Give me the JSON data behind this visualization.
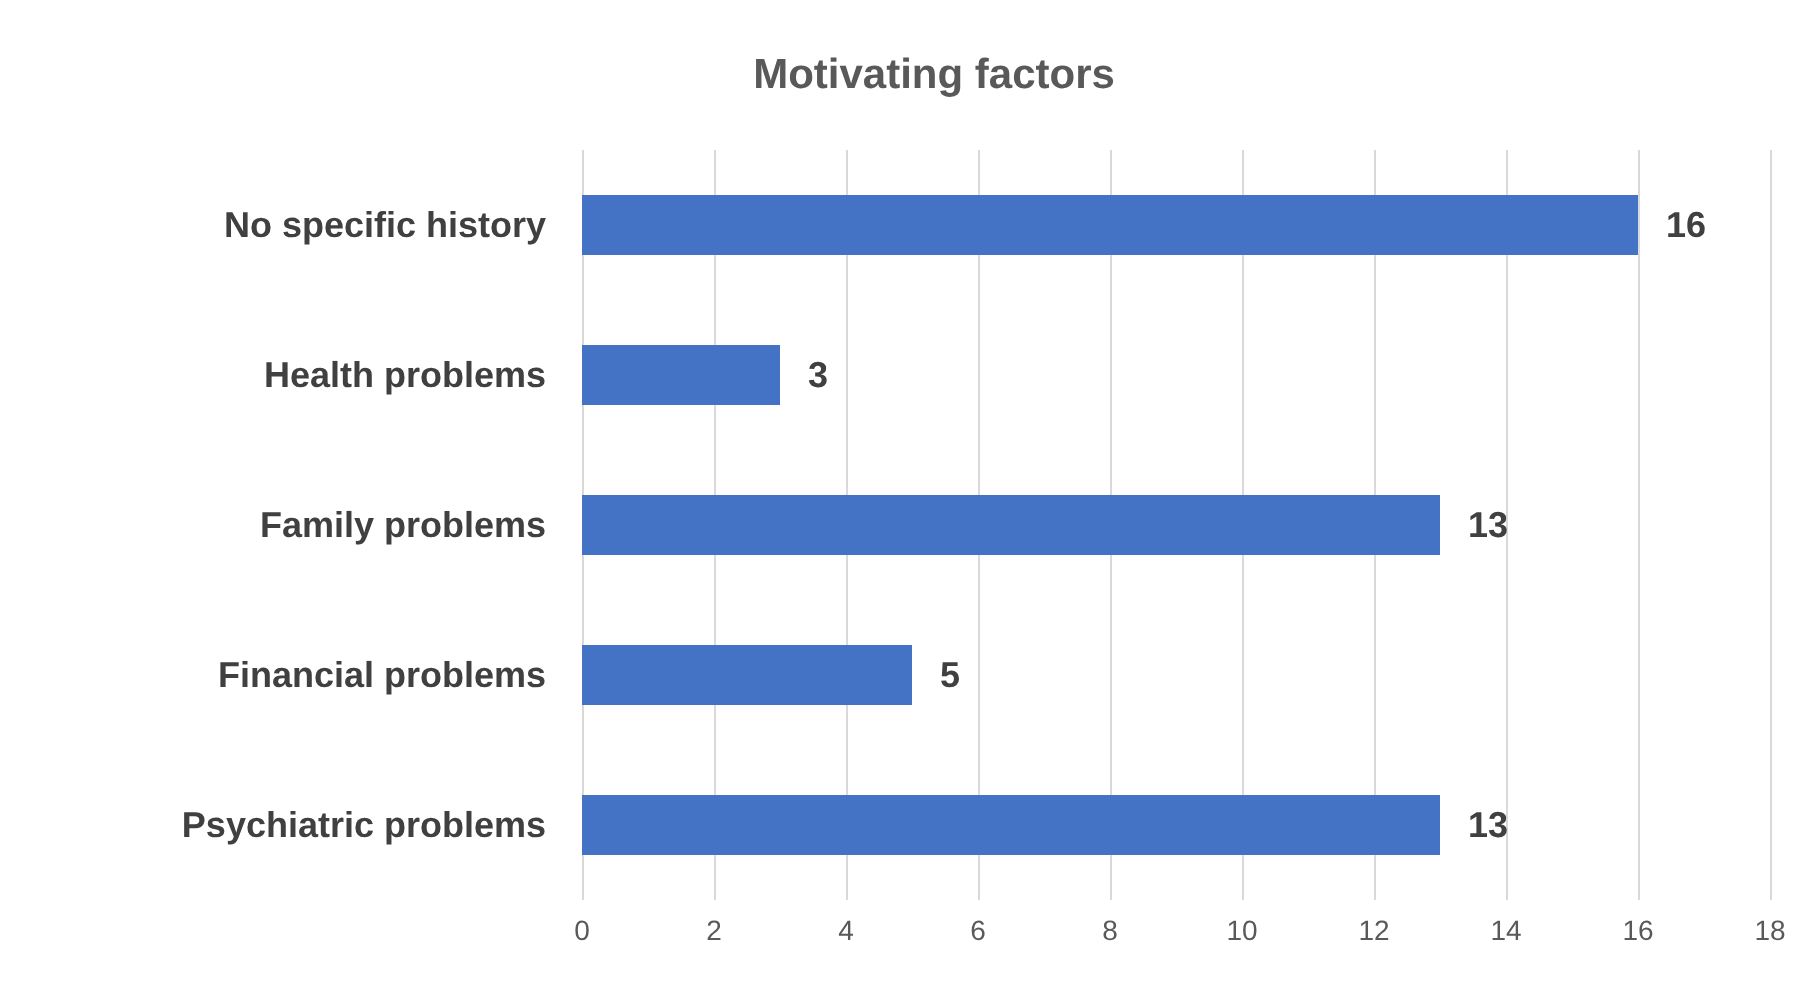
{
  "chart_data": {
    "type": "bar",
    "orientation": "horizontal",
    "title": "Motivating factors",
    "categories": [
      "No specific history",
      "Health problems",
      "Family problems",
      "Financial problems",
      "Psychiatric problems"
    ],
    "values": [
      16,
      3,
      13,
      5,
      13
    ],
    "color": "#4472c4",
    "xlim": [
      0,
      18
    ],
    "xticks": [
      0,
      2,
      4,
      6,
      8,
      10,
      12,
      14,
      16,
      18
    ],
    "grid": "x",
    "data_labels": true
  }
}
